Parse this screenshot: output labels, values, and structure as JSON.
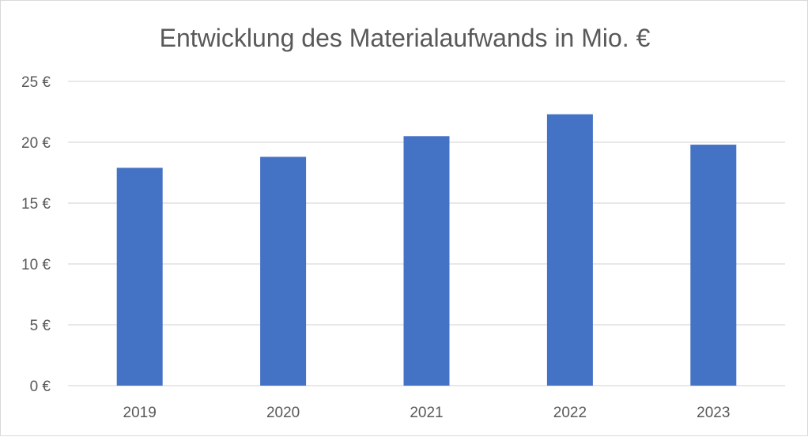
{
  "chart_data": {
    "type": "bar",
    "title": "Entwicklung des Materialaufwands in Mio. €",
    "xlabel": "",
    "ylabel": "",
    "categories": [
      "2019",
      "2020",
      "2021",
      "2022",
      "2023"
    ],
    "values": [
      17.9,
      18.8,
      20.5,
      22.3,
      19.8
    ],
    "ylim": [
      0,
      25
    ],
    "yticks": [
      0,
      5,
      10,
      15,
      20,
      25
    ],
    "ytick_labels": [
      "0 €",
      "5 €",
      "10 €",
      "15 €",
      "20 €",
      "25 €"
    ],
    "grid": true,
    "legend": "none",
    "bar_color": "#4472c4",
    "grid_color": "#d9d9d9"
  }
}
